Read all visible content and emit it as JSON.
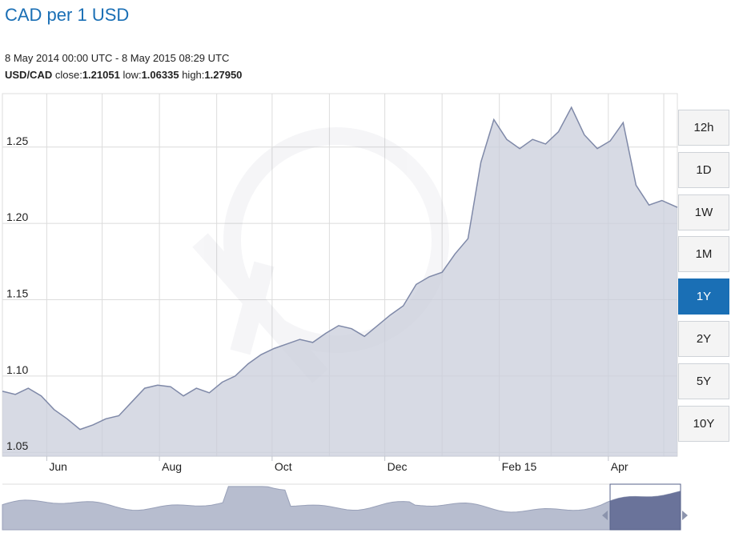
{
  "page": {
    "title": "CAD per 1 USD",
    "date_range": "8 May 2014 00:00 UTC - 8 May 2015 08:29 UTC",
    "pair": "USD/CAD",
    "close_label": "close:",
    "close_value": "1.21051",
    "low_label": "low:",
    "low_value": "1.06335",
    "high_label": "high:",
    "high_value": "1.27950"
  },
  "range_buttons": [
    {
      "label": "12h",
      "active": false
    },
    {
      "label": "1D",
      "active": false
    },
    {
      "label": "1W",
      "active": false
    },
    {
      "label": "1M",
      "active": false
    },
    {
      "label": "1Y",
      "active": true
    },
    {
      "label": "2Y",
      "active": false
    },
    {
      "label": "5Y",
      "active": false
    },
    {
      "label": "10Y",
      "active": false
    }
  ],
  "colors": {
    "line": "#7f89a8",
    "fill": "#c9cedb",
    "navigator_fill": "#b7bdcf",
    "navigator_selected": "#6a739a",
    "grid": "#dcdcdc",
    "active_button": "#1a6fb5",
    "title": "#1a6fb5"
  },
  "chart_data": {
    "type": "area",
    "title": "CAD per 1 USD",
    "xlabel": "",
    "ylabel": "",
    "ylim": [
      1.0475,
      1.285
    ],
    "yticks": [
      "1.05",
      "1.10",
      "1.15",
      "1.20",
      "1.25"
    ],
    "xticks": [
      "Jun",
      "Aug",
      "Oct",
      "Dec",
      "Feb 15",
      "Apr"
    ],
    "grid": true,
    "series": [
      {
        "x": [
          "2014-05-08",
          "2014-05-15",
          "2014-05-22",
          "2014-05-29",
          "2014-06-05",
          "2014-06-12",
          "2014-06-19",
          "2014-06-26",
          "2014-07-03",
          "2014-07-10",
          "2014-07-17",
          "2014-07-24",
          "2014-07-31",
          "2014-08-07",
          "2014-08-14",
          "2014-08-21",
          "2014-08-28",
          "2014-09-04",
          "2014-09-11",
          "2014-09-18",
          "2014-09-25",
          "2014-10-02",
          "2014-10-09",
          "2014-10-16",
          "2014-10-23",
          "2014-10-30",
          "2014-11-06",
          "2014-11-13",
          "2014-11-20",
          "2014-11-27",
          "2014-12-04",
          "2014-12-11",
          "2014-12-18",
          "2014-12-25",
          "2015-01-01",
          "2015-01-08",
          "2015-01-15",
          "2015-01-22",
          "2015-01-29",
          "2015-02-05",
          "2015-02-12",
          "2015-02-19",
          "2015-02-26",
          "2015-03-05",
          "2015-03-12",
          "2015-03-19",
          "2015-03-26",
          "2015-04-02",
          "2015-04-09",
          "2015-04-16",
          "2015-04-23",
          "2015-04-30",
          "2015-05-08"
        ],
        "values": [
          1.09,
          1.088,
          1.092,
          1.087,
          1.078,
          1.072,
          1.065,
          1.068,
          1.072,
          1.074,
          1.083,
          1.092,
          1.094,
          1.093,
          1.087,
          1.092,
          1.089,
          1.096,
          1.1,
          1.108,
          1.114,
          1.118,
          1.121,
          1.124,
          1.122,
          1.128,
          1.133,
          1.131,
          1.126,
          1.133,
          1.14,
          1.146,
          1.16,
          1.165,
          1.168,
          1.18,
          1.19,
          1.24,
          1.268,
          1.255,
          1.249,
          1.255,
          1.252,
          1.26,
          1.276,
          1.258,
          1.249,
          1.254,
          1.266,
          1.225,
          1.212,
          1.215,
          1.21051
        ]
      }
    ]
  }
}
